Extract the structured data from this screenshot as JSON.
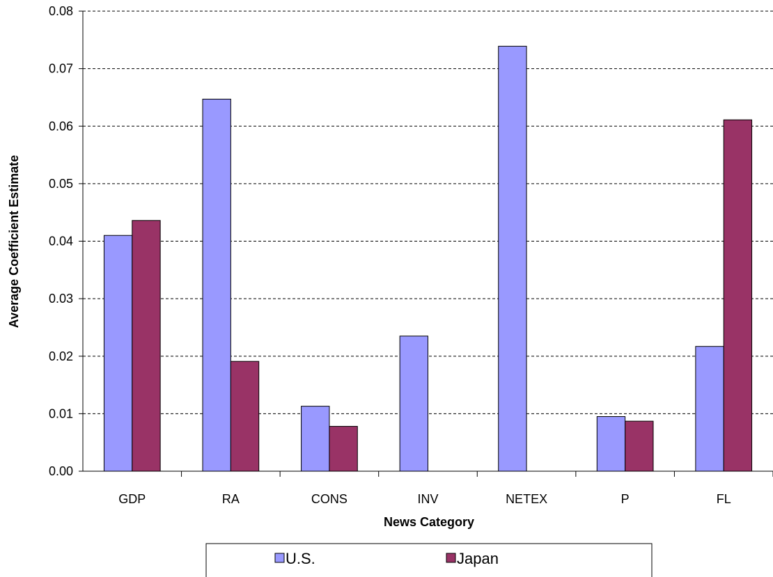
{
  "chart_data": {
    "type": "bar",
    "title": "",
    "xlabel": "News Category",
    "ylabel": "Average Coefficient Estimate",
    "ylim": [
      0,
      0.08
    ],
    "yticks": [
      "0.00",
      "0.01",
      "0.02",
      "0.03",
      "0.04",
      "0.05",
      "0.06",
      "0.07",
      "0.08"
    ],
    "grid": "horizontal-dashed",
    "legend_position": "bottom",
    "categories": [
      "GDP",
      "RA",
      "CONS",
      "INV",
      "NETEX",
      "P",
      "FL"
    ],
    "series": [
      {
        "name": "U.S.",
        "color": "#9999FF",
        "values": [
          0.041,
          0.0647,
          0.0113,
          0.0235,
          0.0739,
          0.0095,
          0.0217
        ]
      },
      {
        "name": "Japan",
        "color": "#993366",
        "values": [
          0.0436,
          0.0191,
          0.0078,
          0,
          0,
          0.0087,
          0.0611
        ]
      }
    ]
  }
}
